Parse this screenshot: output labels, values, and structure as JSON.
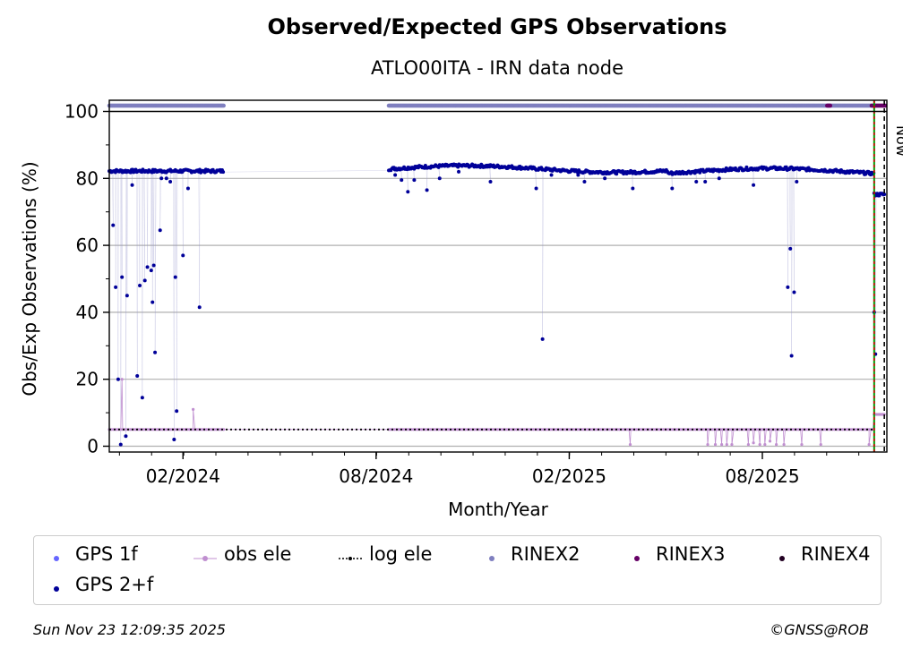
{
  "chart_data": {
    "type": "scatter",
    "title": "Observed/Expected GPS Observations",
    "subtitle": "ATLO00ITA - IRN data node",
    "xlabel": "Month/Year",
    "ylabel": "Obs/Exp Observations (%)",
    "ylim": [
      0,
      100
    ],
    "yticks": [
      "0",
      "20",
      "40",
      "60",
      "80",
      "100"
    ],
    "xlim_days": [
      0,
      612
    ],
    "xticks": [
      {
        "label": "02/2024",
        "day": 58
      },
      {
        "label": "08/2024",
        "day": 210
      },
      {
        "label": "02/2025",
        "day": 362
      },
      {
        "label": "08/2025",
        "day": 514
      }
    ],
    "now_label": "Now",
    "now_day": 610,
    "grid": true,
    "legend": [
      {
        "key": "gps1f",
        "label": "GPS 1f",
        "color": "#6666ff",
        "style": "dot"
      },
      {
        "key": "obsele",
        "label": "obs ele",
        "color": "#c08fd0",
        "style": "line-dot"
      },
      {
        "key": "logele",
        "label": "log ele",
        "color": "#000000",
        "style": "dotted"
      },
      {
        "key": "rinex2",
        "label": "RINEX2",
        "color": "#7f7fbf",
        "style": "dot"
      },
      {
        "key": "rinex3",
        "label": "RINEX3",
        "color": "#660066",
        "style": "dot"
      },
      {
        "key": "rinex4",
        "label": "RINEX4",
        "color": "#220022",
        "style": "dot"
      },
      {
        "key": "gps2f",
        "label": "GPS 2+f",
        "color": "#000099",
        "style": "dot"
      }
    ],
    "series": [
      {
        "name": "GPS 2+f",
        "color": "#000099",
        "segments": [
          {
            "start": 0,
            "end": 90,
            "level": 82.2
          },
          {
            "start": 220,
            "end": 602,
            "level": 83.0
          },
          {
            "start": 602,
            "end": 610,
            "level": 75.2
          }
        ],
        "outliers": [
          [
            3,
            66
          ],
          [
            5,
            47.5
          ],
          [
            7,
            20
          ],
          [
            9,
            0.5
          ],
          [
            10,
            50.5
          ],
          [
            13,
            3
          ],
          [
            14,
            45
          ],
          [
            18,
            78
          ],
          [
            22,
            21
          ],
          [
            24,
            48
          ],
          [
            26,
            14.5
          ],
          [
            28,
            49.5
          ],
          [
            30,
            53.5
          ],
          [
            33,
            52.5
          ],
          [
            34,
            43
          ],
          [
            35,
            54
          ],
          [
            36,
            28
          ],
          [
            40,
            64.5
          ],
          [
            41,
            80
          ],
          [
            45,
            80
          ],
          [
            48,
            79
          ],
          [
            51,
            2
          ],
          [
            52,
            50.5
          ],
          [
            53,
            10.5
          ],
          [
            58,
            57
          ],
          [
            62,
            77
          ],
          [
            71,
            41.5
          ],
          [
            225,
            81
          ],
          [
            230,
            79.5
          ],
          [
            235,
            76
          ],
          [
            240,
            79.5
          ],
          [
            250,
            76.5
          ],
          [
            260,
            80
          ],
          [
            275,
            82
          ],
          [
            300,
            79
          ],
          [
            336,
            77
          ],
          [
            341,
            32
          ],
          [
            348,
            81
          ],
          [
            369,
            81
          ],
          [
            374,
            79
          ],
          [
            390,
            80
          ],
          [
            412,
            77
          ],
          [
            443,
            77
          ],
          [
            462,
            79
          ],
          [
            469,
            79
          ],
          [
            480,
            80
          ],
          [
            507,
            78
          ],
          [
            534,
            47.5
          ],
          [
            536,
            59
          ],
          [
            537,
            27
          ],
          [
            539,
            46
          ],
          [
            541,
            79
          ],
          [
            602,
            40
          ],
          [
            603,
            27.5
          ]
        ]
      },
      {
        "name": "obs ele",
        "color": "#c08fd0",
        "level": 5,
        "ranges": [
          [
            0,
            90
          ],
          [
            220,
            602
          ]
        ],
        "end_level": 9.5,
        "spikes": [
          [
            10,
            20
          ],
          [
            66,
            11
          ]
        ],
        "drops": [
          [
            410,
            0.5
          ],
          [
            471,
            0.5
          ],
          [
            477,
            0.5
          ],
          [
            482,
            0.5
          ],
          [
            486,
            0.5
          ],
          [
            490,
            0.5
          ],
          [
            503,
            0.5
          ],
          [
            507,
            1
          ],
          [
            512,
            0.5
          ],
          [
            516,
            0.5
          ],
          [
            520,
            1.5
          ],
          [
            525,
            0.5
          ],
          [
            531,
            0.5
          ],
          [
            545,
            0.5
          ],
          [
            560,
            0.5
          ],
          [
            598,
            0.5
          ]
        ]
      },
      {
        "name": "log ele",
        "color": "#000000",
        "level": 5,
        "range": [
          0,
          602
        ]
      },
      {
        "name": "RINEX2",
        "color": "#7f7fbf",
        "level": 102,
        "ranges": [
          [
            0,
            90
          ],
          [
            220,
            600
          ]
        ]
      },
      {
        "name": "RINEX3",
        "color": "#660066",
        "level": 102,
        "ranges": [
          [
            565,
            568
          ],
          [
            600,
            611
          ]
        ]
      },
      {
        "name": "RINEX4",
        "color": "#220022",
        "level": 102,
        "ranges": []
      }
    ],
    "markers": [
      {
        "name": "red-marker",
        "day": 602,
        "color": "#cc0000"
      },
      {
        "name": "green-marker",
        "day": 602,
        "color": "#009900"
      }
    ]
  },
  "footer": {
    "timestamp": "Sun Nov 23 12:09:35 2025",
    "credit": "©GNSS@ROB"
  }
}
